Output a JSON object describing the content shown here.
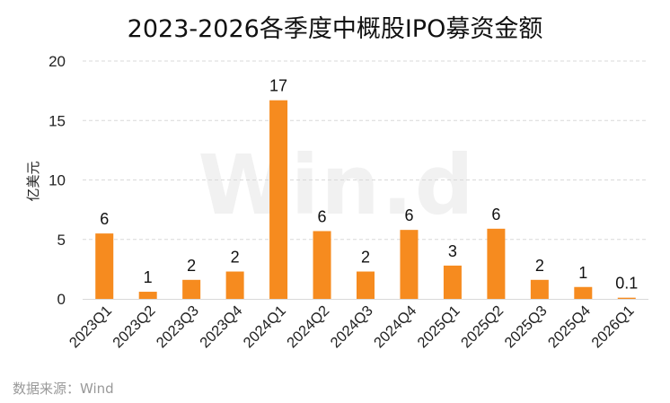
{
  "chart_data": {
    "type": "bar",
    "title": "2023-2026各季度中概股IPO募资金额",
    "ylabel": "亿美元",
    "xlabel": "",
    "ylim": [
      0,
      20
    ],
    "yticks": [
      0,
      5,
      10,
      15,
      20
    ],
    "grid": true,
    "categories": [
      "2023Q1",
      "2023Q2",
      "2023Q3",
      "2023Q4",
      "2024Q1",
      "2024Q2",
      "2024Q3",
      "2024Q4",
      "2025Q1",
      "2025Q2",
      "2025Q3",
      "2025Q4",
      "2026Q1"
    ],
    "values": [
      5.5,
      0.6,
      1.6,
      2.3,
      16.7,
      5.7,
      2.3,
      5.8,
      2.8,
      5.9,
      1.6,
      1.0,
      0.1
    ],
    "data_labels": [
      "6",
      "1",
      "2",
      "2",
      "17",
      "6",
      "2",
      "6",
      "3",
      "6",
      "2",
      "1",
      "0.1"
    ],
    "bar_color": "#f68b1f",
    "source": "数据来源：Wind",
    "watermark": "Win.d"
  }
}
